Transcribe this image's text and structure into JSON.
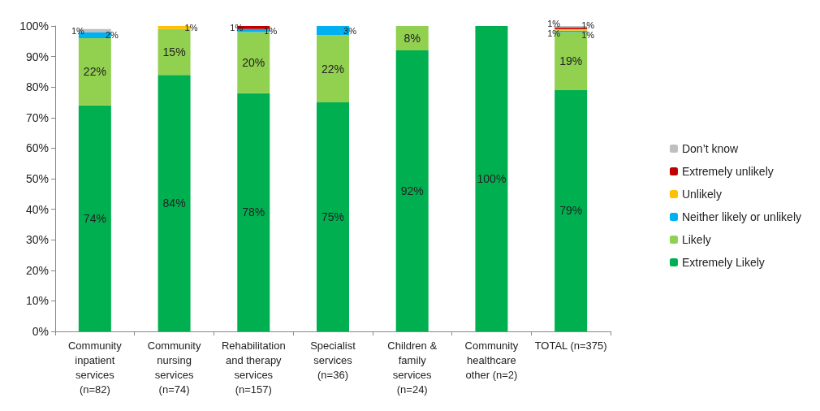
{
  "chart_data": {
    "type": "bar",
    "stacked": true,
    "categories": [
      "Community inpatient services (n=82)",
      "Community nursing services (n=74)",
      "Rehabilitation and therapy services (n=157)",
      "Specialist services (n=36)",
      "Children & family services (n=24)",
      "Community healthcare other (n=2)",
      "TOTAL (n=375)"
    ],
    "series": [
      {
        "name": "Extremely Likely",
        "color": "#00b050",
        "values": [
          74,
          84,
          78,
          75,
          92,
          100,
          79
        ],
        "value_labels": [
          "74%",
          "84%",
          "78%",
          "75%",
          "92%",
          "100%",
          "79%"
        ]
      },
      {
        "name": "Likely",
        "color": "#92d050",
        "values": [
          22,
          15,
          20,
          22,
          8,
          0,
          19
        ],
        "value_labels": [
          "22%",
          "15%",
          "20%",
          "22%",
          "8%",
          null,
          "19%"
        ]
      },
      {
        "name": "Neither likely or unlikely",
        "color": "#00b0f0",
        "values": [
          2,
          0,
          1,
          3,
          0,
          0,
          0.5
        ],
        "value_labels": [
          "2%",
          null,
          "1%",
          "3%",
          null,
          null,
          "1%"
        ]
      },
      {
        "name": "Unlikely",
        "color": "#ffc000",
        "values": [
          0,
          1,
          0,
          0,
          0,
          0,
          0.5
        ],
        "value_labels": [
          null,
          "1%",
          null,
          null,
          null,
          null,
          "1%"
        ]
      },
      {
        "name": "Extremely unlikely",
        "color": "#c00000",
        "values": [
          0,
          0,
          1,
          0,
          0,
          0,
          0.5
        ],
        "value_labels": [
          null,
          null,
          "1%",
          null,
          null,
          null,
          "1%"
        ]
      },
      {
        "name": "Don’t know",
        "color": "#bfbfbf",
        "values": [
          1,
          0,
          0,
          0,
          0,
          0,
          0.5
        ],
        "value_labels": [
          "1%",
          null,
          null,
          null,
          null,
          null,
          "1%"
        ]
      }
    ],
    "ylim": [
      0,
      100
    ],
    "yticks": [
      {
        "value": 0,
        "label": "0%"
      },
      {
        "value": 10,
        "label": "10%"
      },
      {
        "value": 20,
        "label": "20%"
      },
      {
        "value": 30,
        "label": "30%"
      },
      {
        "value": 40,
        "label": "40%"
      },
      {
        "value": 50,
        "label": "50%"
      },
      {
        "value": 60,
        "label": "60%"
      },
      {
        "value": 70,
        "label": "70%"
      },
      {
        "value": 80,
        "label": "80%"
      },
      {
        "value": 90,
        "label": "90%"
      },
      {
        "value": 100,
        "label": "100%"
      }
    ],
    "grid": false,
    "legend": "right"
  }
}
